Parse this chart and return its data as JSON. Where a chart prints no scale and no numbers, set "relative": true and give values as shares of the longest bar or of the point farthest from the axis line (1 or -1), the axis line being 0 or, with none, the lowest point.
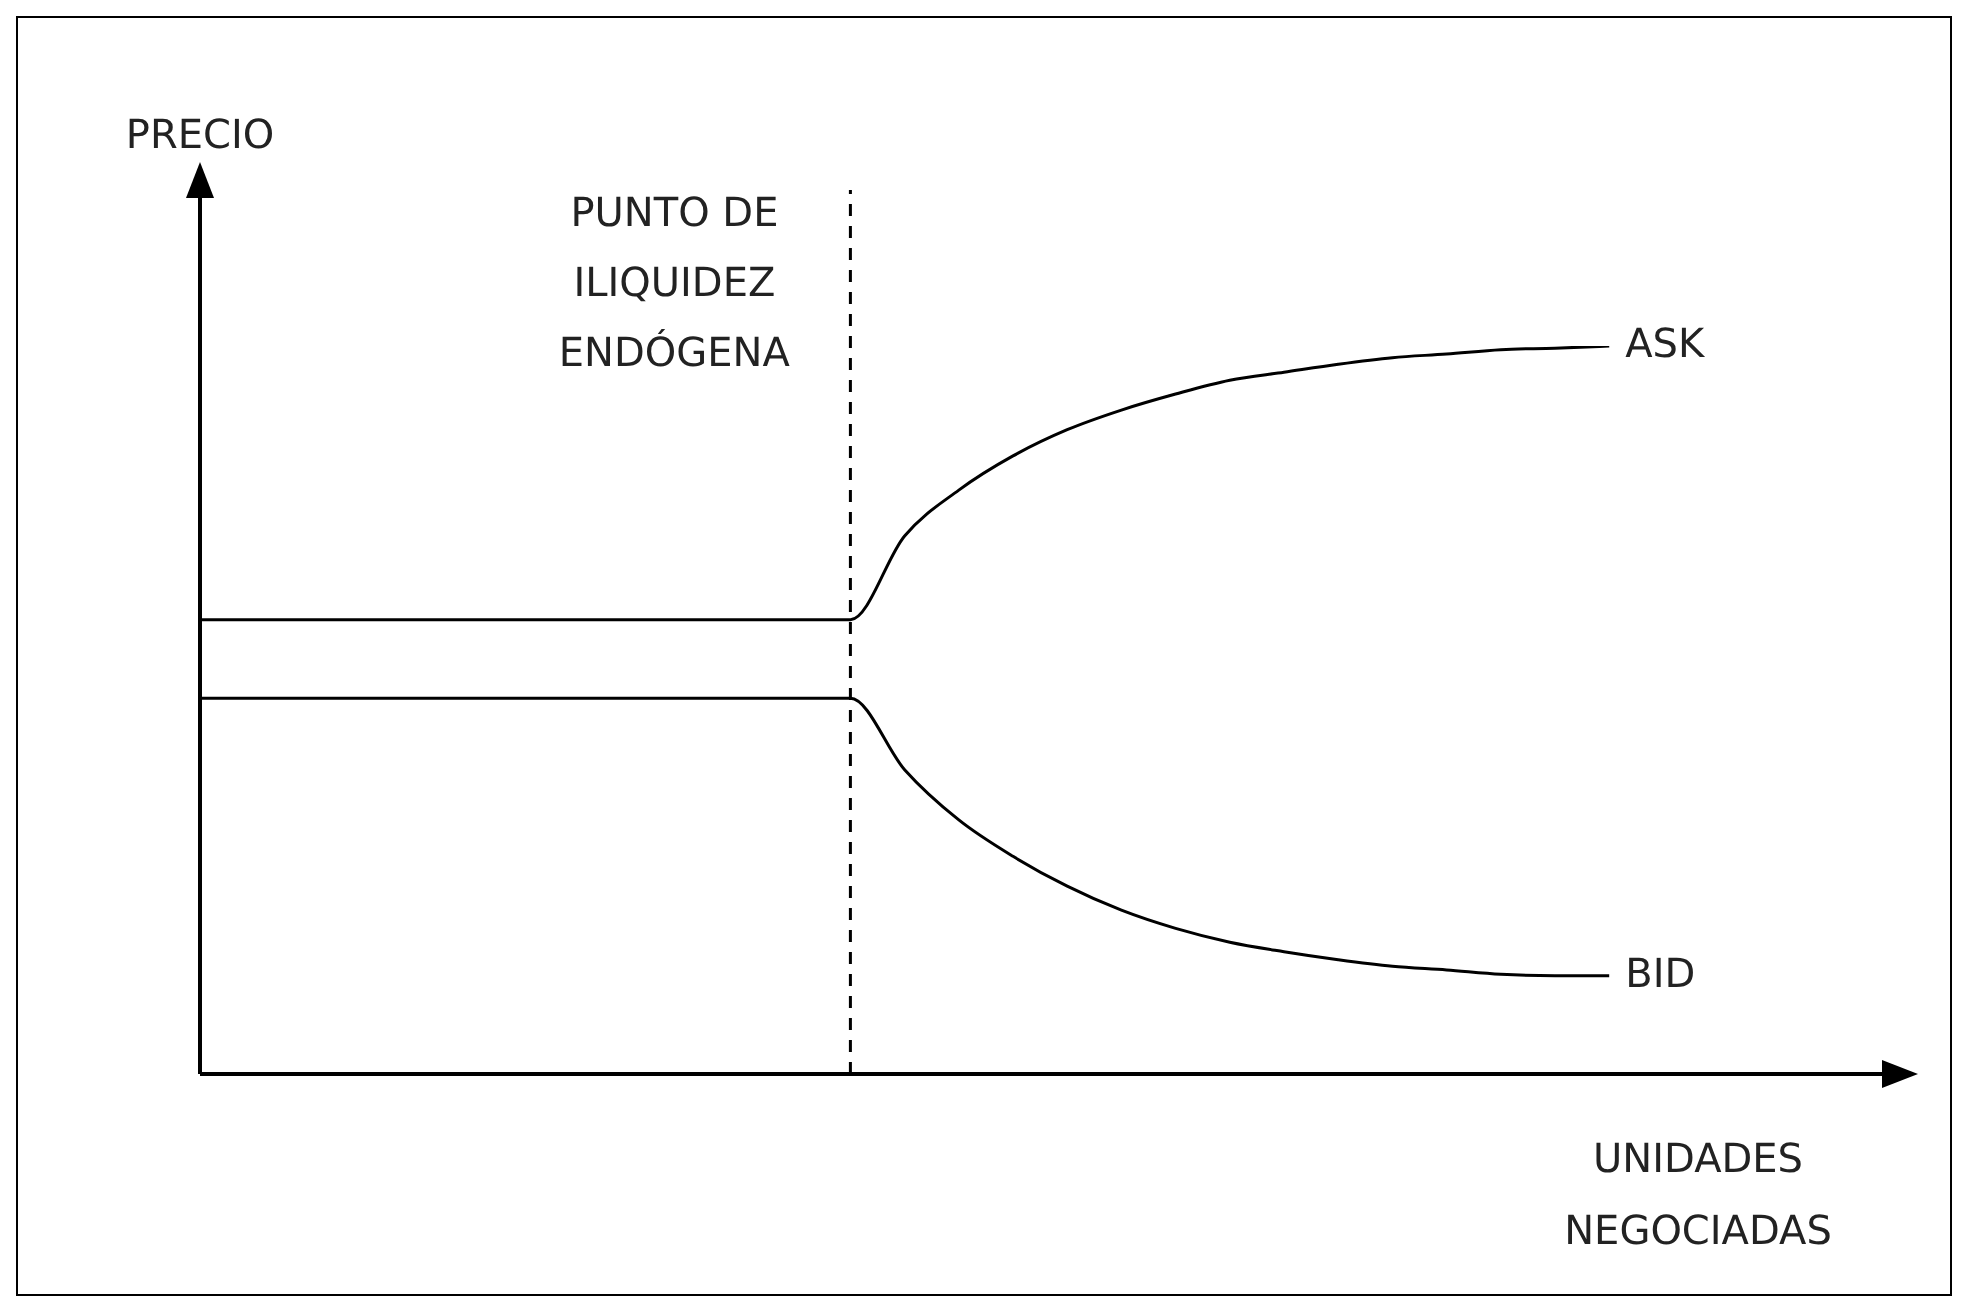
{
  "chart_data": {
    "type": "line",
    "relative": true,
    "ylabel": "PRECIO",
    "xlabel": "UNIDADES NEGOCIADAS",
    "annotations": [
      "PUNTO DE ILIQUIDEZ ENDÓGENA"
    ],
    "categories": [
      null,
      null,
      null,
      null,
      null,
      null,
      null,
      null,
      null,
      null,
      null,
      null,
      null,
      null,
      null,
      null,
      null,
      null,
      null,
      null,
      null,
      null,
      null,
      null,
      null,
      null,
      null,
      null,
      null,
      null,
      null
    ],
    "series": [
      {
        "name": "ASK",
        "color": "#000000",
        "values": [
          0.624,
          0.624,
          0.624,
          0.624,
          0.624,
          0.624,
          0.624,
          0.624,
          0.624,
          0.624,
          0.624,
          0.624,
          0.624,
          0.739,
          0.802,
          0.849,
          0.885,
          0.912,
          0.934,
          0.953,
          0.964,
          0.975,
          0.984,
          0.989,
          0.995,
          0.997,
          1,
          null,
          null,
          null,
          null
        ]
      },
      {
        "name": "BID",
        "color": "#000000",
        "values": [
          0.516,
          0.516,
          0.516,
          0.516,
          0.516,
          0.516,
          0.516,
          0.516,
          0.516,
          0.516,
          0.516,
          0.516,
          0.516,
          0.418,
          0.349,
          0.299,
          0.258,
          0.225,
          0.2,
          0.181,
          0.168,
          0.157,
          0.148,
          0.143,
          0.137,
          0.135,
          0.135,
          null,
          null,
          null,
          null
        ]
      }
    ],
    "grid": false,
    "legend": false,
    "marker": "none",
    "line_style": "solid"
  }
}
